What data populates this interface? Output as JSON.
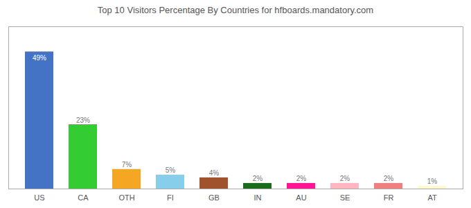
{
  "chart_data": {
    "type": "bar",
    "title": "Top 10 Visitors Percentage By Countries for hfboards.mandatory.com",
    "categories": [
      "US",
      "CA",
      "OTH",
      "FI",
      "GB",
      "IN",
      "AU",
      "SE",
      "FR",
      "AT"
    ],
    "values": [
      49,
      23,
      7,
      5,
      4,
      2,
      2,
      2,
      2,
      1
    ],
    "value_labels": [
      "49%",
      "23%",
      "7%",
      "5%",
      "4%",
      "2%",
      "2%",
      "2%",
      "2%",
      "1%"
    ],
    "colors": [
      "#4472c4",
      "#33cc33",
      "#f5a623",
      "#87ceeb",
      "#a0522d",
      "#1a6b1a",
      "#ff1493",
      "#ffb6c1",
      "#f08080",
      "#fffacd"
    ],
    "ylim": [
      0,
      58
    ],
    "grid": false,
    "data_labels": true,
    "tick_labels": "x"
  }
}
